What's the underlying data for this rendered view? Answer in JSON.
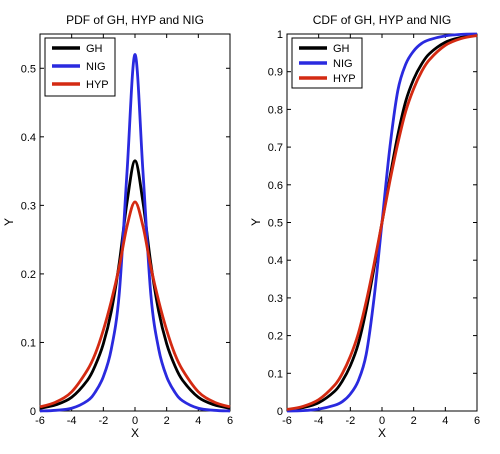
{
  "chart_data": [
    {
      "type": "line",
      "title": "PDF of GH, HYP and NIG",
      "xlabel": "X",
      "ylabel": "Y",
      "xlim": [
        -6,
        6
      ],
      "ylim": [
        0,
        0.55
      ],
      "xticks": [
        -6,
        -4,
        -2,
        0,
        2,
        4,
        6
      ],
      "yticks": [
        0,
        0.1,
        0.2,
        0.3,
        0.4,
        0.5
      ],
      "xtick_labels": [
        "-6",
        "-4",
        "-2",
        "0",
        "2",
        "4",
        "6"
      ],
      "ytick_labels": [
        "0",
        "0.1",
        "0.2",
        "0.3",
        "0.4",
        "0.5"
      ],
      "grid": false,
      "legend_position": "top-left",
      "series": [
        {
          "name": "GH",
          "color": "#000000",
          "x": [
            -6,
            -5,
            -4,
            -3,
            -2.5,
            -2,
            -1.5,
            -1,
            -0.5,
            0,
            0.5,
            1,
            1.5,
            2,
            2.5,
            3,
            4,
            5,
            6
          ],
          "y": [
            0.004,
            0.009,
            0.02,
            0.045,
            0.067,
            0.098,
            0.145,
            0.215,
            0.305,
            0.365,
            0.305,
            0.215,
            0.145,
            0.098,
            0.067,
            0.045,
            0.02,
            0.009,
            0.004
          ]
        },
        {
          "name": "NIG",
          "color": "#2a2adf",
          "x": [
            -6,
            -5,
            -4,
            -3,
            -2.5,
            -2,
            -1.5,
            -1,
            -0.5,
            0,
            0.5,
            1,
            1.5,
            2,
            2.5,
            3,
            4,
            5,
            6
          ],
          "y": [
            0.0,
            0.001,
            0.004,
            0.015,
            0.028,
            0.05,
            0.09,
            0.17,
            0.35,
            0.52,
            0.35,
            0.17,
            0.09,
            0.05,
            0.028,
            0.015,
            0.004,
            0.001,
            0.0
          ]
        },
        {
          "name": "HYP",
          "color": "#d42a12",
          "x": [
            -6,
            -5,
            -4,
            -3,
            -2.5,
            -2,
            -1.5,
            -1,
            -0.5,
            0,
            0.5,
            1,
            1.5,
            2,
            2.5,
            3,
            4,
            5,
            6
          ],
          "y": [
            0.006,
            0.013,
            0.028,
            0.06,
            0.084,
            0.118,
            0.16,
            0.21,
            0.27,
            0.305,
            0.27,
            0.21,
            0.16,
            0.118,
            0.084,
            0.06,
            0.028,
            0.013,
            0.006
          ]
        }
      ]
    },
    {
      "type": "line",
      "title": "CDF of GH, HYP and NIG",
      "xlabel": "X",
      "ylabel": "Y",
      "xlim": [
        -6,
        6
      ],
      "ylim": [
        0,
        1
      ],
      "xticks": [
        -6,
        -4,
        -2,
        0,
        2,
        4,
        6
      ],
      "yticks": [
        0,
        0.1,
        0.2,
        0.3,
        0.4,
        0.5,
        0.6,
        0.7,
        0.8,
        0.9,
        1
      ],
      "xtick_labels": [
        "-6",
        "-4",
        "-2",
        "0",
        "2",
        "4",
        "6"
      ],
      "ytick_labels": [
        "0",
        "0.1",
        "0.2",
        "0.3",
        "0.4",
        "0.5",
        "0.6",
        "0.7",
        "0.8",
        "0.9",
        "1"
      ],
      "grid": false,
      "legend_position": "top-left",
      "series": [
        {
          "name": "GH",
          "color": "#000000",
          "x": [
            -6,
            -5,
            -4,
            -3,
            -2.5,
            -2,
            -1.5,
            -1,
            -0.5,
            0,
            0.5,
            1,
            1.5,
            2,
            2.5,
            3,
            4,
            5,
            6
          ],
          "y": [
            0.003,
            0.009,
            0.022,
            0.052,
            0.08,
            0.12,
            0.178,
            0.268,
            0.38,
            0.5,
            0.62,
            0.732,
            0.822,
            0.88,
            0.92,
            0.948,
            0.978,
            0.991,
            0.997
          ]
        },
        {
          "name": "NIG",
          "color": "#2a2adf",
          "x": [
            -6,
            -5,
            -4,
            -3,
            -2.5,
            -2,
            -1.5,
            -1,
            -0.5,
            0,
            0.5,
            1,
            1.5,
            2,
            2.5,
            3,
            4,
            5,
            6
          ],
          "y": [
            0.0,
            0.001,
            0.005,
            0.015,
            0.025,
            0.045,
            0.08,
            0.15,
            0.3,
            0.5,
            0.7,
            0.85,
            0.92,
            0.955,
            0.975,
            0.985,
            0.995,
            0.999,
            1.0
          ]
        },
        {
          "name": "HYP",
          "color": "#d42a12",
          "x": [
            -6,
            -5,
            -4,
            -3,
            -2.5,
            -2,
            -1.5,
            -1,
            -0.5,
            0,
            0.5,
            1,
            1.5,
            2,
            2.5,
            3,
            4,
            5,
            6
          ],
          "y": [
            0.004,
            0.012,
            0.03,
            0.068,
            0.1,
            0.145,
            0.205,
            0.29,
            0.39,
            0.5,
            0.61,
            0.71,
            0.795,
            0.855,
            0.9,
            0.932,
            0.97,
            0.988,
            0.996
          ]
        }
      ]
    }
  ]
}
